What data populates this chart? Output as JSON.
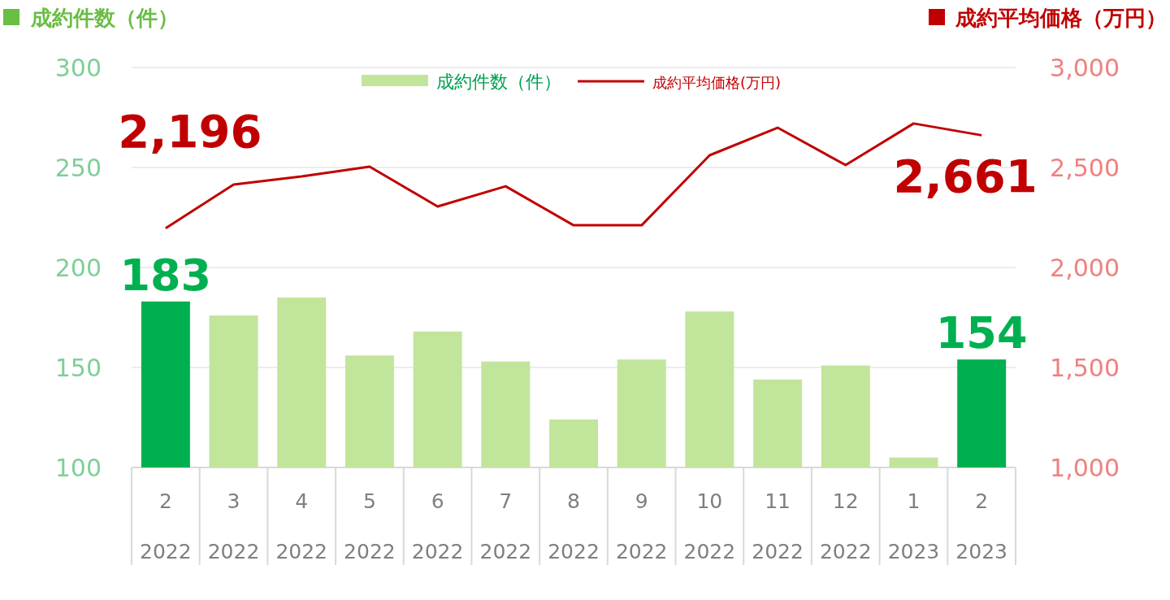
{
  "chart_data": {
    "type": "bar",
    "ylabel": "成約件数（件）",
    "y2label": "成約平均価格（万円）",
    "categories": [
      "2\n2022",
      "3\n2022",
      "4\n2022",
      "5\n2022",
      "6\n2022",
      "7\n2022",
      "8\n2022",
      "9\n2022",
      "10\n2022",
      "11\n2022",
      "12\n2022",
      "1\n2023",
      "2\n2023"
    ],
    "series": [
      {
        "name": "成約件数（件）",
        "color": "#c2e59c",
        "colors": [
          "#00b050",
          "#c2e59c",
          "#c2e59c",
          "#c2e59c",
          "#c2e59c",
          "#c2e59c",
          "#c2e59c",
          "#c2e59c",
          "#c2e59c",
          "#c2e59c",
          "#c2e59c",
          "#c2e59c",
          "#00b050"
        ],
        "values": [
          183,
          176,
          185,
          156,
          168,
          153,
          124,
          154,
          178,
          144,
          151,
          105,
          154
        ],
        "value_labels": [
          "183",
          null,
          null,
          null,
          null,
          null,
          null,
          null,
          null,
          null,
          null,
          null,
          "154"
        ]
      },
      {
        "name": "成約平均価格(万円)",
        "type": "line",
        "axis": "y2",
        "color": "#c00000",
        "values": [
          2196,
          2415,
          2455,
          2504,
          2305,
          2406,
          2211,
          2211,
          2561,
          2699,
          2512,
          2720,
          2661
        ],
        "value_labels": [
          "2,196",
          null,
          null,
          null,
          null,
          null,
          null,
          null,
          null,
          null,
          null,
          null,
          "2,661"
        ]
      }
    ],
    "ylim": [
      100,
      300
    ],
    "yticks": [
      100,
      150,
      200,
      250,
      300
    ],
    "y2lim": [
      1000,
      3000
    ],
    "y2ticks": [
      {
        "value": 1000,
        "label": "1,000"
      },
      {
        "value": 1500,
        "label": "1,500"
      },
      {
        "value": 2000,
        "label": "2,000"
      },
      {
        "value": 2500,
        "label": "2,500"
      },
      {
        "value": 3000,
        "label": "3,000"
      }
    ],
    "grid": "y",
    "legend": "top",
    "marker": "none"
  }
}
